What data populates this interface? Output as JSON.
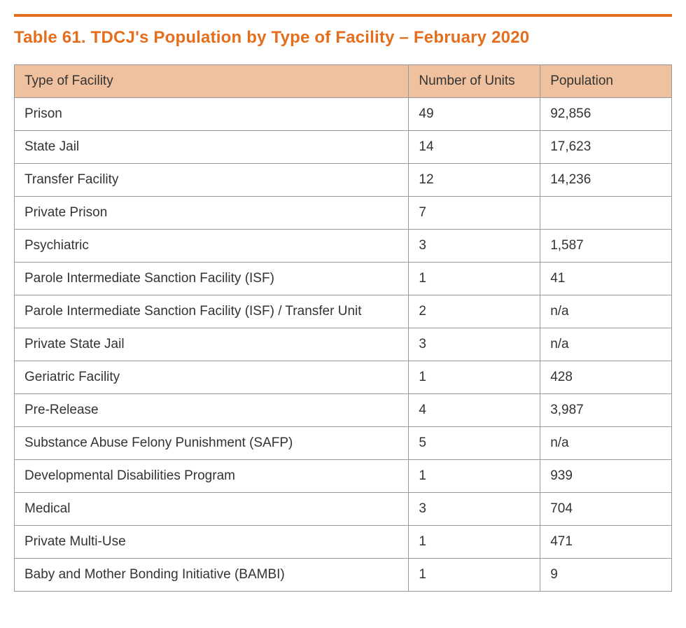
{
  "title": "Table 61. TDCJ's Population by Type of Facility – February 2020",
  "columns": [
    "Type of Facility",
    "Number of Units",
    "Population"
  ],
  "rows": [
    [
      "Prison",
      "49",
      "92,856"
    ],
    [
      "State Jail",
      "14",
      "17,623"
    ],
    [
      "Transfer Facility",
      "12",
      "14,236"
    ],
    [
      "Private Prison",
      "7",
      ""
    ],
    [
      "Psychiatric",
      "3",
      "1,587"
    ],
    [
      "Parole Intermediate Sanction Facility (ISF)",
      "1",
      "41"
    ],
    [
      "Parole Intermediate Sanction Facility (ISF) / Transfer Unit",
      "2",
      "n/a"
    ],
    [
      "Private State Jail",
      "3",
      "n/a"
    ],
    [
      "Geriatric Facility",
      "1",
      "428"
    ],
    [
      "Pre-Release",
      "4",
      "3,987"
    ],
    [
      "Substance Abuse Felony Punishment (SAFP)",
      "5",
      "n/a"
    ],
    [
      "Developmental Disabilities Program",
      "1",
      "939"
    ],
    [
      "Medical",
      "3",
      "704"
    ],
    [
      "Private Multi-Use",
      "1",
      "471"
    ],
    [
      "Baby and Mother Bonding Initiative (BAMBI)",
      "1",
      "9"
    ]
  ],
  "styles": {
    "rule_color": "#e36f1e",
    "title_color": "#e36f1e",
    "header_bg": "#f0c19e",
    "header_text_color": "#333333",
    "cell_text_color": "#333333",
    "border_color": "#999999",
    "title_fontsize": 24,
    "cell_fontsize": 19
  }
}
